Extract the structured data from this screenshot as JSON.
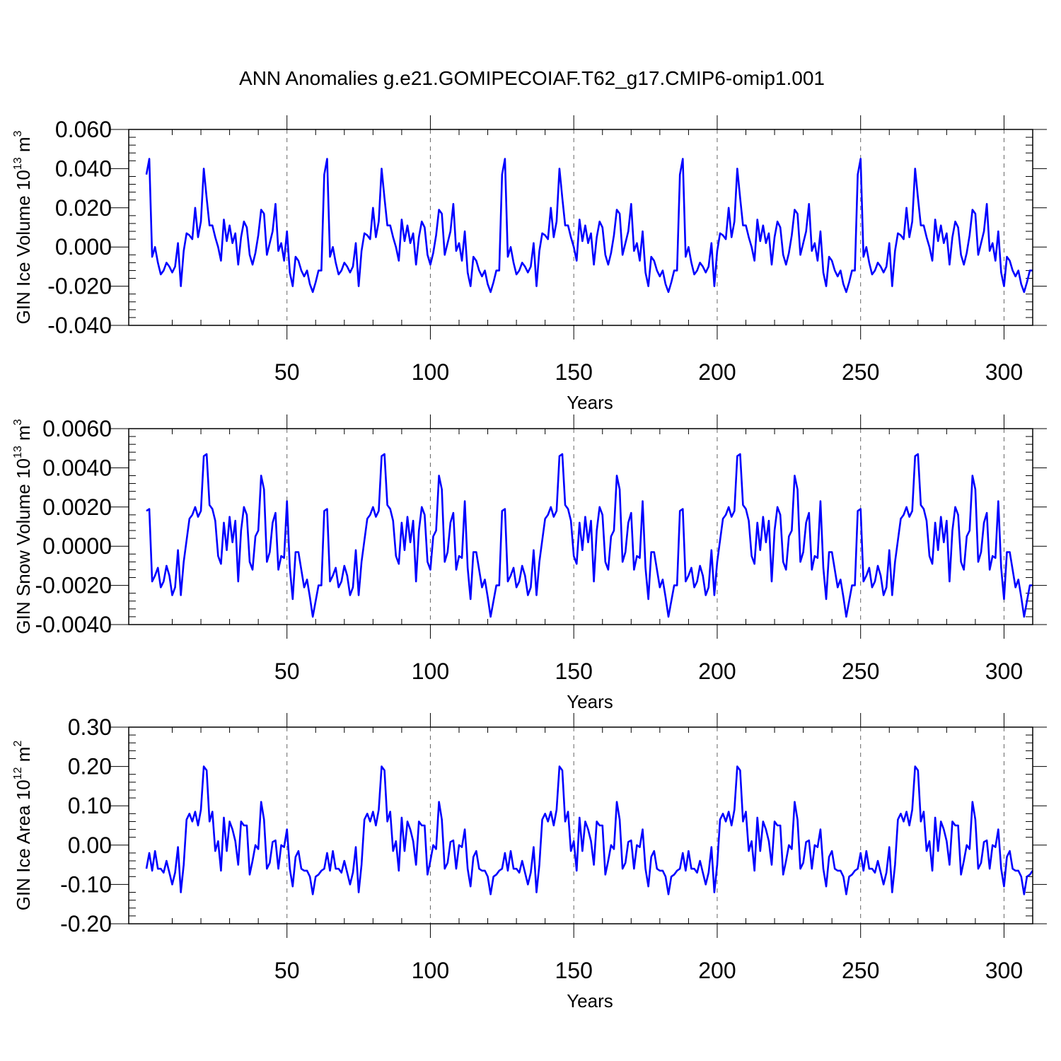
{
  "title": "ANN Anomalies g.e21.GOMIPECOIAF.T62_g17.CMIP6-omip1.001",
  "chart_data": [
    {
      "type": "line",
      "ylabel": "GIN Ice Volume 10^13 m^3",
      "ylabel_parts": {
        "base": "GIN Ice Volume 10",
        "exp1": "13",
        "mid": " m",
        "exp2": "3"
      },
      "xlabel": "Years",
      "xlim": [
        1,
        310
      ],
      "ylim": [
        -0.04,
        0.06
      ],
      "xticks": [
        50,
        100,
        150,
        200,
        250,
        300
      ],
      "xtick_labels": [
        "50",
        "100",
        "150",
        "200",
        "250",
        "300"
      ],
      "yticks": [
        -0.04,
        -0.02,
        0.0,
        0.02,
        0.04,
        0.06
      ],
      "ytick_labels": [
        "-0.040",
        "-0.020",
        "0.000",
        "0.020",
        "0.040",
        "0.060"
      ],
      "color": "#0000ff",
      "cycle_length": 62,
      "base_cycle": [
        0.037,
        0.045,
        -0.005,
        0.0,
        -0.008,
        -0.014,
        -0.012,
        -0.008,
        -0.01,
        -0.013,
        -0.01,
        0.002,
        -0.02,
        -0.002,
        0.007,
        0.006,
        0.004,
        0.02,
        0.005,
        0.013,
        0.04,
        0.025,
        0.011,
        0.011,
        0.005,
        0.0,
        -0.007,
        0.014,
        0.003,
        0.011,
        0.002,
        0.007,
        -0.009,
        0.005,
        0.013,
        0.01,
        -0.004,
        -0.009,
        -0.003,
        0.006,
        0.019,
        0.017,
        -0.004,
        0.002,
        0.008,
        0.022,
        -0.002,
        0.002,
        -0.007,
        0.008,
        -0.013,
        -0.02,
        -0.005,
        -0.007,
        -0.012,
        -0.015,
        -0.012,
        -0.019,
        -0.023,
        -0.018,
        -0.012,
        -0.012
      ],
      "values": []
    },
    {
      "type": "line",
      "ylabel": "GIN Snow Volume 10^13 m^3",
      "ylabel_parts": {
        "base": "GIN Snow Volume 10",
        "exp1": "13",
        "mid": " m",
        "exp2": "3"
      },
      "xlabel": "Years",
      "xlim": [
        1,
        310
      ],
      "ylim": [
        -0.004,
        0.006
      ],
      "xticks": [
        50,
        100,
        150,
        200,
        250,
        300
      ],
      "xtick_labels": [
        "50",
        "100",
        "150",
        "200",
        "250",
        "300"
      ],
      "yticks": [
        -0.004,
        -0.002,
        0.0,
        0.002,
        0.004,
        0.006
      ],
      "ytick_labels": [
        "-0.0040",
        "-0.0020",
        "0.0000",
        "0.0020",
        "0.0040",
        "0.0060"
      ],
      "color": "#0000ff",
      "cycle_length": 62,
      "base_cycle": [
        0.0018,
        0.0019,
        -0.0018,
        -0.0015,
        -0.0011,
        -0.0021,
        -0.0018,
        -0.001,
        -0.0015,
        -0.0025,
        -0.0021,
        -0.0002,
        -0.0025,
        -0.0008,
        0.0003,
        0.0014,
        0.0016,
        0.002,
        0.0015,
        0.0018,
        0.0046,
        0.0047,
        0.0021,
        0.0019,
        0.0013,
        -0.0005,
        -0.0009,
        0.0012,
        -0.0002,
        0.0015,
        0.0002,
        0.0013,
        -0.0018,
        0.0008,
        0.002,
        0.0016,
        -0.0008,
        -0.0012,
        0.0005,
        0.0008,
        0.0036,
        0.0029,
        -0.0008,
        -0.0003,
        0.0012,
        0.0017,
        -0.0012,
        -0.0005,
        -0.0006,
        0.0023,
        -0.0011,
        -0.0027,
        -0.0003,
        -0.0003,
        -0.0012,
        -0.0021,
        -0.0017,
        -0.0026,
        -0.0036,
        -0.0028,
        -0.002,
        -0.002
      ],
      "values": []
    },
    {
      "type": "line",
      "ylabel": "GIN Ice Area 10^12 m^2",
      "ylabel_parts": {
        "base": "GIN Ice Area 10",
        "exp1": "12",
        "mid": " m",
        "exp2": "2"
      },
      "xlabel": "Years",
      "xlim": [
        1,
        310
      ],
      "ylim": [
        -0.2,
        0.3
      ],
      "xticks": [
        50,
        100,
        150,
        200,
        250,
        300
      ],
      "xtick_labels": [
        "50",
        "100",
        "150",
        "200",
        "250",
        "300"
      ],
      "yticks": [
        -0.2,
        -0.1,
        0.0,
        0.1,
        0.2,
        0.3
      ],
      "ytick_labels": [
        "-0.20",
        "-0.10",
        "0.00",
        "0.10",
        "0.20",
        "0.30"
      ],
      "color": "#0000ff",
      "cycle_length": 62,
      "base_cycle": [
        -0.06,
        -0.02,
        -0.065,
        -0.015,
        -0.06,
        -0.06,
        -0.07,
        -0.04,
        -0.07,
        -0.1,
        -0.07,
        -0.005,
        -0.12,
        -0.05,
        0.065,
        0.08,
        0.06,
        0.085,
        0.05,
        0.09,
        0.2,
        0.19,
        0.06,
        0.085,
        -0.015,
        0.01,
        -0.065,
        0.07,
        -0.015,
        0.06,
        0.04,
        0.01,
        -0.05,
        0.06,
        0.05,
        0.05,
        -0.075,
        -0.04,
        0.0,
        -0.01,
        0.11,
        0.065,
        -0.06,
        -0.045,
        0.008,
        0.012,
        -0.06,
        0.0,
        -0.005,
        0.04,
        -0.06,
        -0.105,
        -0.03,
        -0.015,
        -0.06,
        -0.065,
        -0.065,
        -0.08,
        -0.125,
        -0.08,
        -0.075,
        -0.065
      ],
      "values": []
    }
  ]
}
